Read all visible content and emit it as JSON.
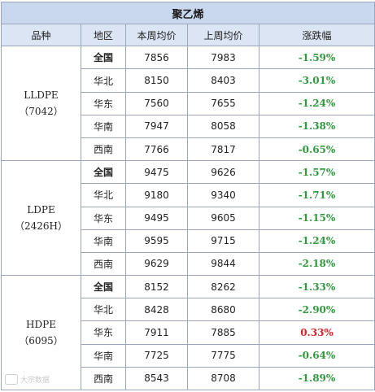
{
  "title": "聚乙烯",
  "headers": [
    "品种",
    "地区",
    "本周均价",
    "上周均价",
    "涨跌幅"
  ],
  "groups": [
    {
      "product_name": "LLDPE",
      "product_code": "（7042）",
      "rows": [
        {
          "region": "全国",
          "this_week": "7856",
          "last_week": "7983",
          "change": "-1.59%",
          "direction": "down"
        },
        {
          "region": "华北",
          "this_week": "8150",
          "last_week": "8403",
          "change": "-3.01%",
          "direction": "down"
        },
        {
          "region": "华东",
          "this_week": "7560",
          "last_week": "7655",
          "change": "-1.24%",
          "direction": "down"
        },
        {
          "region": "华南",
          "this_week": "7947",
          "last_week": "8058",
          "change": "-1.38%",
          "direction": "down"
        },
        {
          "region": "西南",
          "this_week": "7766",
          "last_week": "7817",
          "change": "-0.65%",
          "direction": "down"
        }
      ]
    },
    {
      "product_name": "LDPE",
      "product_code": "（2426H）",
      "rows": [
        {
          "region": "全国",
          "this_week": "9475",
          "last_week": "9626",
          "change": "-1.57%",
          "direction": "down"
        },
        {
          "region": "华北",
          "this_week": "9180",
          "last_week": "9340",
          "change": "-1.71%",
          "direction": "down"
        },
        {
          "region": "华东",
          "this_week": "9495",
          "last_week": "9605",
          "change": "-1.15%",
          "direction": "down"
        },
        {
          "region": "华南",
          "this_week": "9595",
          "last_week": "9715",
          "change": "-1.24%",
          "direction": "down"
        },
        {
          "region": "西南",
          "this_week": "9629",
          "last_week": "9844",
          "change": "-2.18%",
          "direction": "down"
        }
      ]
    },
    {
      "product_name": "HDPE",
      "product_code": "（6095）",
      "rows": [
        {
          "region": "全国",
          "this_week": "8152",
          "last_week": "8262",
          "change": "-1.33%",
          "direction": "down"
        },
        {
          "region": "华北",
          "this_week": "8428",
          "last_week": "8680",
          "change": "-2.90%",
          "direction": "down"
        },
        {
          "region": "华东",
          "this_week": "7911",
          "last_week": "7885",
          "change": "0.33%",
          "direction": "up"
        },
        {
          "region": "华南",
          "this_week": "7725",
          "last_week": "7775",
          "change": "-0.64%",
          "direction": "down"
        },
        {
          "region": "西南",
          "this_week": "8543",
          "last_week": "8708",
          "change": "-1.89%",
          "direction": "down"
        }
      ]
    }
  ],
  "colors": {
    "down": "#2f9a3c",
    "up": "#e02020",
    "header_bg": "#dbe5f4",
    "title_bg": "#c9d7ef"
  },
  "watermark": "大宗数据"
}
